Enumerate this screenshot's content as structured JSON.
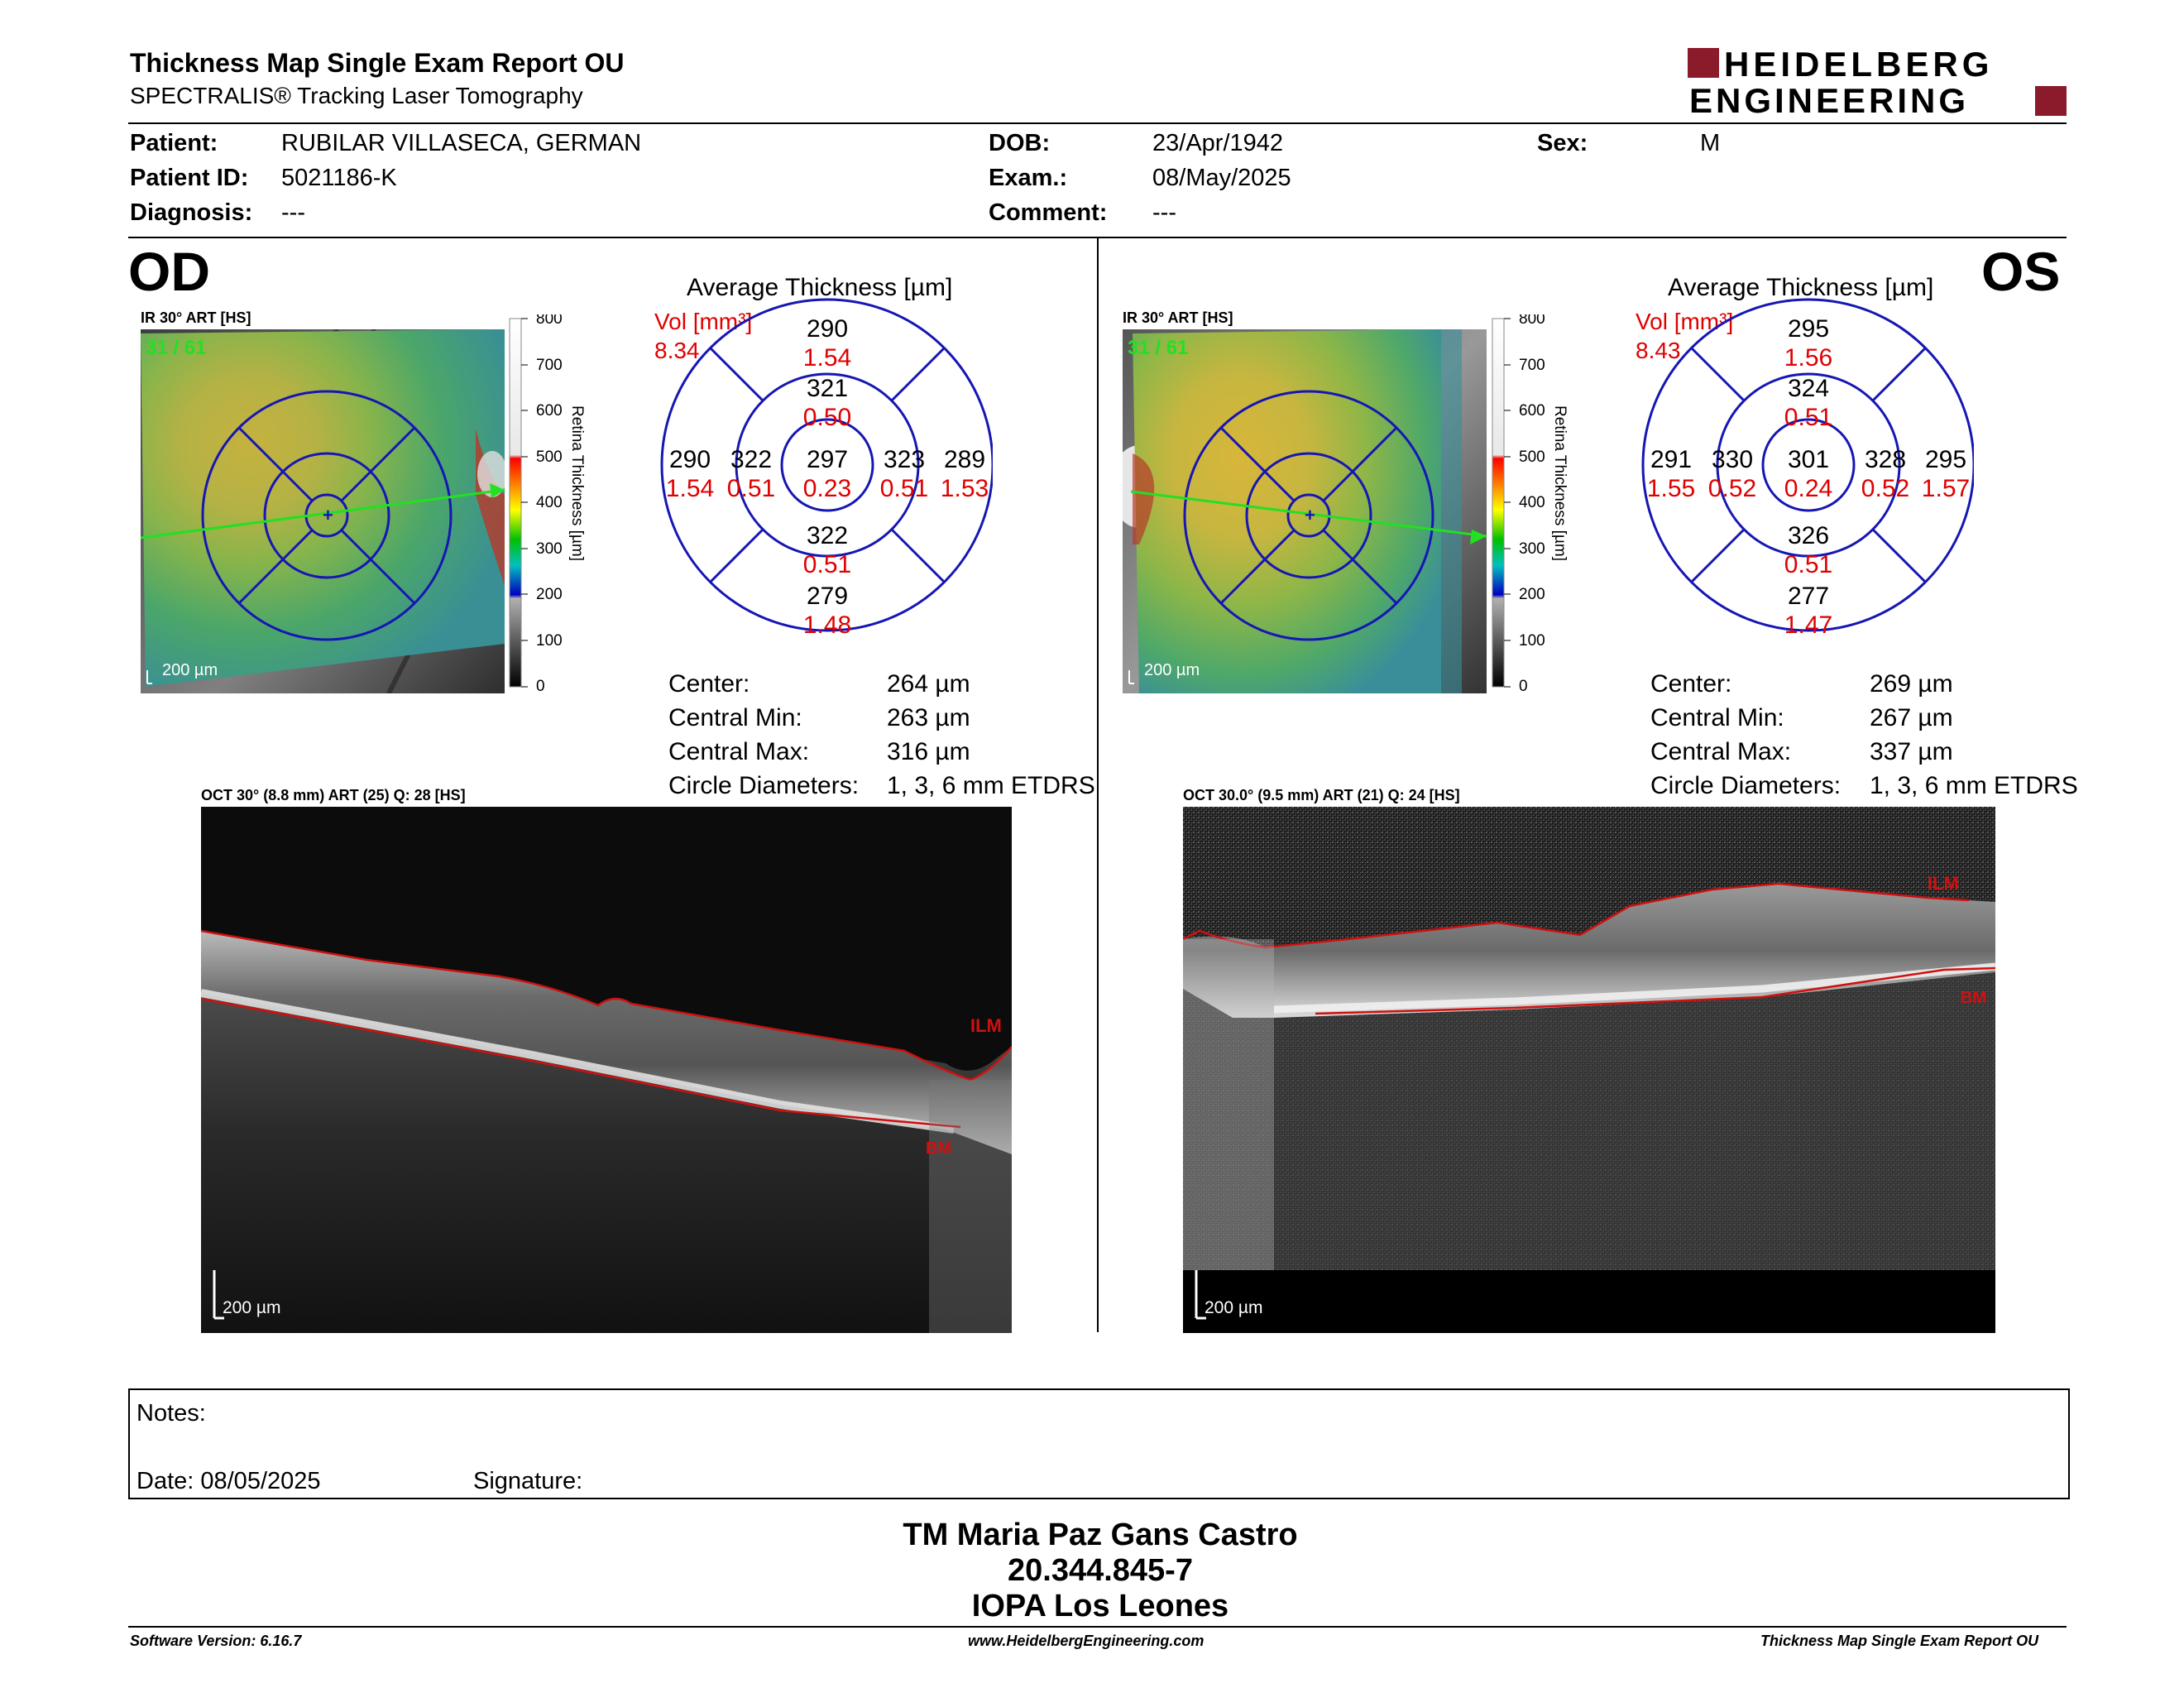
{
  "header": {
    "title": "Thickness Map Single Exam Report OU",
    "subtitle": "SPECTRALIS® Tracking Laser Tomography",
    "logo_line1": "HEIDELBERG",
    "logo_line2": "ENGINEERING",
    "brand_color": "#8b1a2b"
  },
  "patient": {
    "patient_label": "Patient:",
    "patient_value": "RUBILAR VILLASECA, GERMAN",
    "id_label": "Patient ID:",
    "id_value": "5021186-K",
    "diag_label": "Diagnosis:",
    "diag_value": "---",
    "dob_label": "DOB:",
    "dob_value": "23/Apr/1942",
    "exam_label": "Exam.:",
    "exam_value": "08/May/2025",
    "comment_label": "Comment:",
    "comment_value": "---",
    "sex_label": "Sex:",
    "sex_value": "M"
  },
  "od": {
    "eye": "OD",
    "ir_label": "IR 30° ART [HS]",
    "frames": "31 / 61",
    "scale": "200 µm",
    "avg_title": "Average Thickness [µm]",
    "vol_label": "Vol [mm³]",
    "vol_value": "8.34",
    "center_t": "297",
    "center_v": "0.23",
    "inner_top_t": "321",
    "inner_top_v": "0.50",
    "inner_bottom_t": "322",
    "inner_bottom_v": "0.51",
    "inner_left_t": "322",
    "inner_left_v": "0.51",
    "inner_right_t": "323",
    "inner_right_v": "0.51",
    "outer_top_t": "290",
    "outer_top_v": "1.54",
    "outer_bottom_t": "279",
    "outer_bottom_v": "1.48",
    "outer_left_t": "290",
    "outer_left_v": "1.54",
    "outer_right_t": "289",
    "outer_right_v": "1.53",
    "center_label": "Center:",
    "center_value": "264 µm",
    "cmin_label": "Central Min:",
    "cmin_value": "263 µm",
    "cmax_label": "Central Max:",
    "cmax_value": "316 µm",
    "diam_label": "Circle Diameters:",
    "diam_value": "1, 3, 6 mm ETDRS",
    "oct_label": "OCT 30° (8.8 mm) ART (25) Q: 28 [HS]",
    "ilm": "ILM",
    "bm": "BM",
    "oct_scale": "200 µm"
  },
  "os": {
    "eye": "OS",
    "ir_label": "IR 30° ART [HS]",
    "frames": "31 / 61",
    "scale": "200 µm",
    "avg_title": "Average Thickness [µm]",
    "vol_label": "Vol [mm³]",
    "vol_value": "8.43",
    "center_t": "301",
    "center_v": "0.24",
    "inner_top_t": "324",
    "inner_top_v": "0.51",
    "inner_bottom_t": "326",
    "inner_bottom_v": "0.51",
    "inner_left_t": "330",
    "inner_left_v": "0.52",
    "inner_right_t": "328",
    "inner_right_v": "0.52",
    "outer_top_t": "295",
    "outer_top_v": "1.56",
    "outer_bottom_t": "277",
    "outer_bottom_v": "1.47",
    "outer_left_t": "291",
    "outer_left_v": "1.55",
    "outer_right_t": "295",
    "outer_right_v": "1.57",
    "center_label": "Center:",
    "center_value": "269 µm",
    "cmin_label": "Central Min:",
    "cmin_value": "267 µm",
    "cmax_label": "Central Max:",
    "cmax_value": "337 µm",
    "diam_label": "Circle Diameters:",
    "diam_value": "1, 3, 6 mm ETDRS",
    "oct_label": "OCT 30.0° (9.5 mm) ART (21) Q: 24 [HS]",
    "ilm": "ILM",
    "bm": "BM",
    "oct_scale": "200 µm"
  },
  "colorbar": {
    "ticks": [
      "800",
      "700",
      "600",
      "500",
      "400",
      "300",
      "200",
      "100",
      "0"
    ],
    "title": "Retina Thickness [µm]"
  },
  "notes": {
    "notes_label": "Notes:",
    "date_label": "Date: 08/05/2025",
    "signature_label": "Signature:"
  },
  "signature": {
    "name": "TM Maria Paz Gans Castro",
    "rut": "20.344.845-7",
    "clinic": "IOPA Los Leones"
  },
  "footer": {
    "version": "Software Version: 6.16.7",
    "website": "www.HeidelbergEngineering.com",
    "report": "Thickness Map Single Exam Report OU"
  }
}
